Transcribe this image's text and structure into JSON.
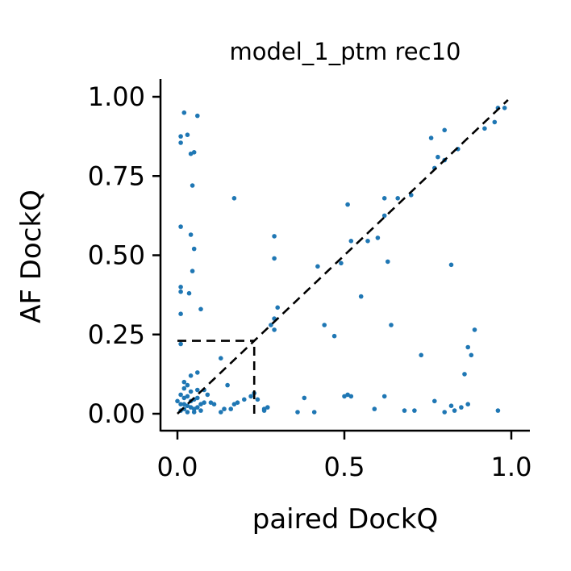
{
  "chart_data": {
    "type": "scatter",
    "title": "model_1_ptm rec10",
    "xlabel": "paired DockQ",
    "ylabel": "AF DockQ",
    "xlim": [
      -0.05,
      1.05
    ],
    "ylim": [
      -0.05,
      1.05
    ],
    "x_ticks": [
      0.0,
      0.5,
      1.0
    ],
    "x_tick_labels": [
      "0.0",
      "0.5",
      "1.0"
    ],
    "y_ticks": [
      0.0,
      0.25,
      0.5,
      0.75,
      1.0
    ],
    "y_tick_labels": [
      "0.00",
      "0.25",
      "0.50",
      "0.75",
      "1.00"
    ],
    "marker_color": "#1f77b4",
    "reference_lines": [
      {
        "kind": "diagonal",
        "x": [
          0,
          0.99
        ],
        "y": [
          0,
          0.99
        ],
        "style": "dashed"
      },
      {
        "kind": "threshold-horizontal",
        "x": [
          0,
          0.23
        ],
        "y": [
          0.23,
          0.23
        ],
        "style": "dashed"
      },
      {
        "kind": "threshold-vertical",
        "x": [
          0.23,
          0.23
        ],
        "y": [
          0,
          0.23
        ],
        "style": "dashed"
      }
    ],
    "points": [
      [
        0.02,
        0.95
      ],
      [
        0.06,
        0.94
      ],
      [
        0.03,
        0.88
      ],
      [
        0.01,
        0.875
      ],
      [
        0.01,
        0.855
      ],
      [
        0.04,
        0.82
      ],
      [
        0.05,
        0.825
      ],
      [
        0.045,
        0.72
      ],
      [
        0.17,
        0.68
      ],
      [
        0.01,
        0.59
      ],
      [
        0.04,
        0.565
      ],
      [
        0.05,
        0.52
      ],
      [
        0.29,
        0.56
      ],
      [
        0.29,
        0.49
      ],
      [
        0.045,
        0.45
      ],
      [
        0.01,
        0.4
      ],
      [
        0.01,
        0.385
      ],
      [
        0.035,
        0.38
      ],
      [
        0.07,
        0.33
      ],
      [
        0.01,
        0.315
      ],
      [
        0.29,
        0.3
      ],
      [
        0.28,
        0.28
      ],
      [
        0.3,
        0.335
      ],
      [
        0.29,
        0.265
      ],
      [
        0.01,
        0.22
      ],
      [
        0.42,
        0.465
      ],
      [
        0.44,
        0.28
      ],
      [
        0.47,
        0.245
      ],
      [
        0.49,
        0.475
      ],
      [
        0.51,
        0.66
      ],
      [
        0.52,
        0.545
      ],
      [
        0.55,
        0.37
      ],
      [
        0.57,
        0.545
      ],
      [
        0.6,
        0.555
      ],
      [
        0.62,
        0.625
      ],
      [
        0.62,
        0.68
      ],
      [
        0.63,
        0.48
      ],
      [
        0.64,
        0.28
      ],
      [
        0.66,
        0.68
      ],
      [
        0.7,
        0.69
      ],
      [
        0.73,
        0.185
      ],
      [
        0.76,
        0.87
      ],
      [
        0.77,
        0.775
      ],
      [
        0.78,
        0.81
      ],
      [
        0.8,
        0.895
      ],
      [
        0.8,
        0.8
      ],
      [
        0.82,
        0.47
      ],
      [
        0.84,
        0.835
      ],
      [
        0.86,
        0.125
      ],
      [
        0.87,
        0.21
      ],
      [
        0.88,
        0.185
      ],
      [
        0.89,
        0.265
      ],
      [
        0.92,
        0.9
      ],
      [
        0.95,
        0.92
      ],
      [
        0.96,
        0.965
      ],
      [
        0.98,
        0.965
      ],
      [
        0.13,
        0.175
      ],
      [
        0.04,
        0.12
      ],
      [
        0.06,
        0.13
      ],
      [
        0.15,
        0.09
      ],
      [
        0.02,
        0.1
      ],
      [
        0.09,
        0.06
      ],
      [
        0.08,
        0.075
      ],
      [
        0.1,
        0.035
      ],
      [
        0.01,
        0.06
      ],
      [
        0.02,
        0.05
      ],
      [
        0.03,
        0.055
      ],
      [
        0.04,
        0.04
      ],
      [
        0.05,
        0.045
      ],
      [
        0.06,
        0.05
      ],
      [
        0.07,
        0.03
      ],
      [
        0.08,
        0.035
      ],
      [
        0.11,
        0.03
      ],
      [
        0.02,
        0.03
      ],
      [
        0.03,
        0.025
      ],
      [
        0.04,
        0.02
      ],
      [
        0.05,
        0.015
      ],
      [
        0.06,
        0.02
      ],
      [
        0.02,
        0.015
      ],
      [
        0.01,
        0.01
      ],
      [
        0.03,
        0.005
      ],
      [
        0.05,
        0.005
      ],
      [
        0.07,
        0.01
      ],
      [
        0.01,
        0.03
      ],
      [
        0.0,
        0.04
      ],
      [
        0.04,
        0.07
      ],
      [
        0.06,
        0.075
      ],
      [
        0.03,
        0.09
      ],
      [
        0.02,
        0.08
      ],
      [
        0.13,
        0.005
      ],
      [
        0.14,
        0.015
      ],
      [
        0.16,
        0.015
      ],
      [
        0.17,
        0.03
      ],
      [
        0.18,
        0.035
      ],
      [
        0.2,
        0.045
      ],
      [
        0.22,
        0.055
      ],
      [
        0.23,
        0.065
      ],
      [
        0.24,
        0.045
      ],
      [
        0.26,
        0.015
      ],
      [
        0.27,
        0.02
      ],
      [
        0.26,
        0.01
      ],
      [
        0.36,
        0.005
      ],
      [
        0.38,
        0.05
      ],
      [
        0.41,
        0.005
      ],
      [
        0.5,
        0.055
      ],
      [
        0.51,
        0.06
      ],
      [
        0.52,
        0.055
      ],
      [
        0.59,
        0.015
      ],
      [
        0.62,
        0.055
      ],
      [
        0.68,
        0.01
      ],
      [
        0.71,
        0.01
      ],
      [
        0.77,
        0.04
      ],
      [
        0.8,
        0.005
      ],
      [
        0.82,
        0.025
      ],
      [
        0.83,
        0.01
      ],
      [
        0.85,
        0.02
      ],
      [
        0.87,
        0.03
      ],
      [
        0.96,
        0.01
      ]
    ]
  }
}
